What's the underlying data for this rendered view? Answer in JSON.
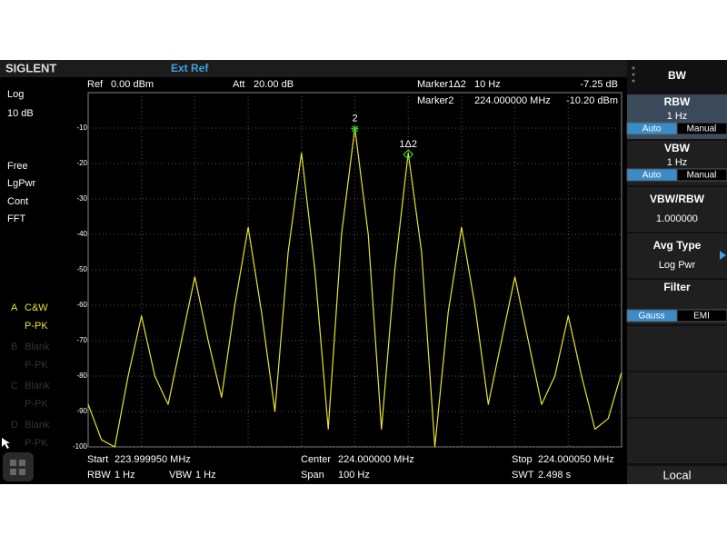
{
  "header": {
    "brand": "SIGLENT",
    "ref_source": "Ext Ref"
  },
  "status_bar": {
    "ref_label": "Ref",
    "ref_value": "0.00 dBm",
    "att_label": "Att",
    "att_value": "20.00 dB",
    "marker1_label": "Marker1Δ2",
    "marker1_x": "10 Hz",
    "marker1_y": "-7.25 dB",
    "marker2_label": "Marker2",
    "marker2_x": "224.000000 MHz",
    "marker2_y": "-10.20 dBm"
  },
  "left_panel": {
    "items": [
      "Log",
      "10 dB",
      "Free",
      "LgPwr",
      "Cont",
      "FFT"
    ],
    "traces": [
      {
        "letter": "A",
        "mode": "C&W",
        "detector": "P-PK"
      },
      {
        "letter": "B",
        "mode": "Blank",
        "detector": "P-PK"
      },
      {
        "letter": "C",
        "mode": "Blank",
        "detector": "P-PK"
      },
      {
        "letter": "D",
        "mode": "Blank",
        "detector": "P-PK"
      }
    ]
  },
  "chart_data": {
    "type": "line",
    "color": "#e6e62e",
    "x": [
      223.99995,
      223.9999525,
      223.999955,
      223.9999575,
      223.99996,
      223.9999625,
      223.999965,
      223.9999675,
      223.99997,
      223.9999725,
      223.999975,
      223.9999775,
      223.99998,
      223.9999825,
      223.999985,
      223.9999875,
      223.99999,
      223.9999925,
      223.999995,
      223.9999975,
      224.0,
      224.0000025,
      224.000005,
      224.0000075,
      224.00001,
      224.0000125,
      224.000015,
      224.0000175,
      224.00002,
      224.0000225,
      224.000025,
      224.0000275,
      224.00003,
      224.0000325,
      224.000035,
      224.0000375,
      224.00004,
      224.0000425,
      224.000045,
      224.0000475,
      224.00005
    ],
    "values": [
      -88,
      -98,
      -100,
      -80,
      -63,
      -80,
      -88,
      -70,
      -52,
      -70,
      -86,
      -60,
      -38,
      -62,
      -90,
      -45,
      -17,
      -50,
      -95,
      -40,
      -10,
      -40,
      -95,
      -50,
      -17,
      -45,
      -100,
      -62,
      -38,
      -60,
      -88,
      -70,
      -52,
      -70,
      -88,
      -80,
      -63,
      -80,
      -95,
      -92,
      -79
    ],
    "xlim": [
      223.99995,
      224.00005
    ],
    "ylim": [
      -100,
      0
    ],
    "yticks": [
      -10,
      -20,
      -30,
      -40,
      -50,
      -60,
      -70,
      -80,
      -90,
      -100
    ],
    "grid": true,
    "markers": [
      {
        "label": "2",
        "x": 224.0,
        "y": -10.2
      },
      {
        "label": "1Δ2",
        "x": 224.00001,
        "y": -17.45
      }
    ]
  },
  "footer": {
    "start_label": "Start",
    "start": "223.999950 MHz",
    "center_label": "Center",
    "center": "224.000000 MHz",
    "stop_label": "Stop",
    "stop": "224.000050 MHz",
    "rbw_label": "RBW",
    "rbw": "1 Hz",
    "vbw_label": "VBW",
    "vbw": "1 Hz",
    "span_label": "Span",
    "span": "100 Hz",
    "swt_label": "SWT",
    "swt": "2.498 s"
  },
  "menu": {
    "title": "BW",
    "items": [
      {
        "title": "RBW",
        "value": "1 Hz",
        "options": [
          "Auto",
          "Manual"
        ]
      },
      {
        "title": "VBW",
        "value": "1 Hz",
        "options": [
          "Auto",
          "Manual"
        ]
      },
      {
        "title": "VBW/RBW",
        "value": "1.000000"
      },
      {
        "title": "Avg Type",
        "value": "Log Pwr"
      },
      {
        "title": "Filter",
        "options": [
          "Gauss",
          "EMI"
        ]
      }
    ],
    "local": "Local"
  }
}
